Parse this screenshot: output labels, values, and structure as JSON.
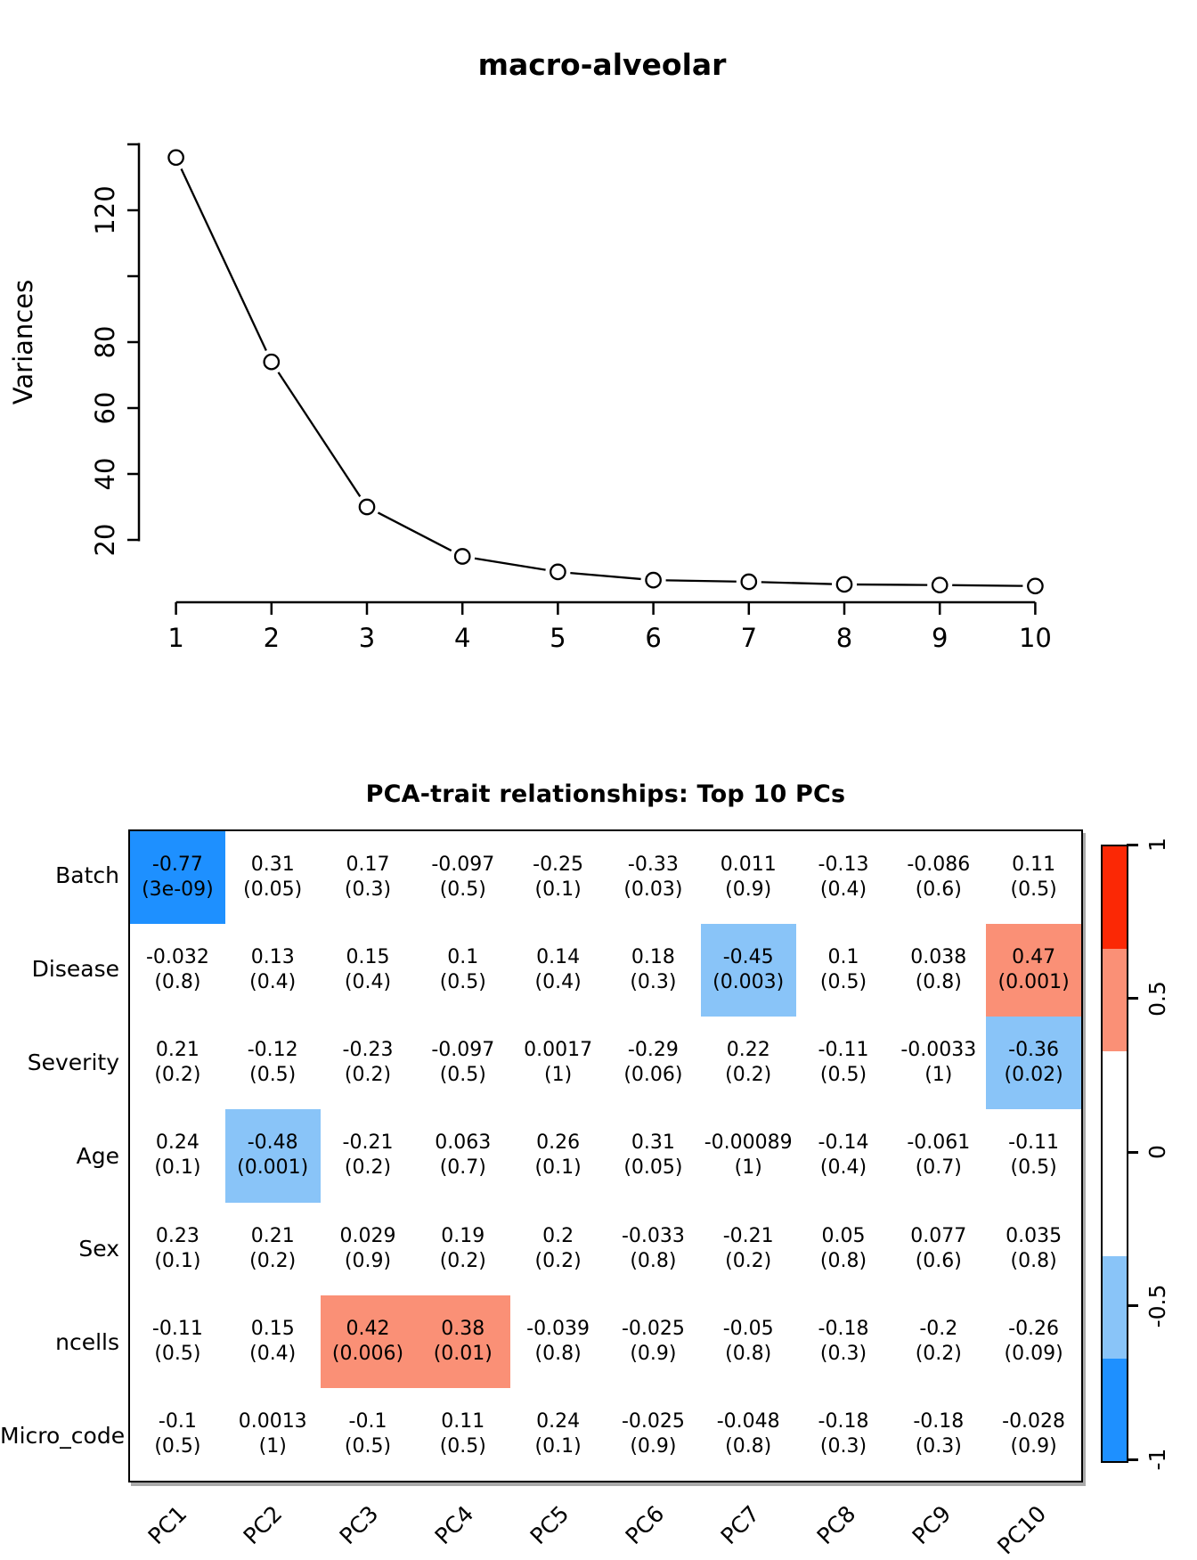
{
  "colors": {
    "blue": "#1E90FF",
    "lightblue": "#89C4F8",
    "salmon": "#FA9076",
    "red": "#FB2805",
    "white": "#FFFFFF",
    "axis": "#000000",
    "shadow": "#AAAAAA"
  },
  "chart_data": [
    {
      "type": "line",
      "title": "macro-alveolar",
      "xlabel": "",
      "ylabel": "Variances",
      "x": [
        1,
        2,
        3,
        4,
        5,
        6,
        7,
        8,
        9,
        10
      ],
      "y": [
        136,
        74,
        30,
        15,
        10.3,
        7.8,
        7.3,
        6.5,
        6.3,
        6
      ],
      "marker": "open-circle",
      "ylim": [
        1,
        142
      ],
      "grid": "off",
      "y_ticks": [
        {
          "v": 20,
          "label": "20"
        },
        {
          "v": 40,
          "label": "40"
        },
        {
          "v": 60,
          "label": "60"
        },
        {
          "v": 80,
          "label": "80"
        },
        {
          "v": 100,
          "label": ""
        },
        {
          "v": 120,
          "label": "120"
        },
        {
          "v": 140,
          "label": ""
        }
      ],
      "x_tick_labels": [
        "1",
        "2",
        "3",
        "4",
        "5",
        "6",
        "7",
        "8",
        "9",
        "10"
      ]
    },
    {
      "type": "heatmap",
      "title": "PCA-trait relationships: Top 10 PCs",
      "columns": [
        "PC1",
        "PC2",
        "PC3",
        "PC4",
        "PC5",
        "PC6",
        "PC7",
        "PC8",
        "PC9",
        "PC10"
      ],
      "cell_format": "correlation (p-value)",
      "rows": [
        {
          "label": "Batch",
          "cells": [
            {
              "r": "-0.77",
              "p": "(3e-09)",
              "c": "blue"
            },
            {
              "r": "0.31",
              "p": "(0.05)",
              "c": "white"
            },
            {
              "r": "0.17",
              "p": "(0.3)",
              "c": "white"
            },
            {
              "r": "-0.097",
              "p": "(0.5)",
              "c": "white"
            },
            {
              "r": "-0.25",
              "p": "(0.1)",
              "c": "white"
            },
            {
              "r": "-0.33",
              "p": "(0.03)",
              "c": "white"
            },
            {
              "r": "0.011",
              "p": "(0.9)",
              "c": "white"
            },
            {
              "r": "-0.13",
              "p": "(0.4)",
              "c": "white"
            },
            {
              "r": "-0.086",
              "p": "(0.6)",
              "c": "white"
            },
            {
              "r": "0.11",
              "p": "(0.5)",
              "c": "white"
            }
          ]
        },
        {
          "label": "Disease",
          "cells": [
            {
              "r": "-0.032",
              "p": "(0.8)",
              "c": "white"
            },
            {
              "r": "0.13",
              "p": "(0.4)",
              "c": "white"
            },
            {
              "r": "0.15",
              "p": "(0.4)",
              "c": "white"
            },
            {
              "r": "0.1",
              "p": "(0.5)",
              "c": "white"
            },
            {
              "r": "0.14",
              "p": "(0.4)",
              "c": "white"
            },
            {
              "r": "0.18",
              "p": "(0.3)",
              "c": "white"
            },
            {
              "r": "-0.45",
              "p": "(0.003)",
              "c": "lightblue"
            },
            {
              "r": "0.1",
              "p": "(0.5)",
              "c": "white"
            },
            {
              "r": "0.038",
              "p": "(0.8)",
              "c": "white"
            },
            {
              "r": "0.47",
              "p": "(0.001)",
              "c": "salmon"
            }
          ]
        },
        {
          "label": "Severity",
          "cells": [
            {
              "r": "0.21",
              "p": "(0.2)",
              "c": "white"
            },
            {
              "r": "-0.12",
              "p": "(0.5)",
              "c": "white"
            },
            {
              "r": "-0.23",
              "p": "(0.2)",
              "c": "white"
            },
            {
              "r": "-0.097",
              "p": "(0.5)",
              "c": "white"
            },
            {
              "r": "0.0017",
              "p": "(1)",
              "c": "white"
            },
            {
              "r": "-0.29",
              "p": "(0.06)",
              "c": "white"
            },
            {
              "r": "0.22",
              "p": "(0.2)",
              "c": "white"
            },
            {
              "r": "-0.11",
              "p": "(0.5)",
              "c": "white"
            },
            {
              "r": "-0.0033",
              "p": "(1)",
              "c": "white"
            },
            {
              "r": "-0.36",
              "p": "(0.02)",
              "c": "lightblue"
            }
          ]
        },
        {
          "label": "Age",
          "cells": [
            {
              "r": "0.24",
              "p": "(0.1)",
              "c": "white"
            },
            {
              "r": "-0.48",
              "p": "(0.001)",
              "c": "lightblue"
            },
            {
              "r": "-0.21",
              "p": "(0.2)",
              "c": "white"
            },
            {
              "r": "0.063",
              "p": "(0.7)",
              "c": "white"
            },
            {
              "r": "0.26",
              "p": "(0.1)",
              "c": "white"
            },
            {
              "r": "0.31",
              "p": "(0.05)",
              "c": "white"
            },
            {
              "r": "-0.00089",
              "p": "(1)",
              "c": "white"
            },
            {
              "r": "-0.14",
              "p": "(0.4)",
              "c": "white"
            },
            {
              "r": "-0.061",
              "p": "(0.7)",
              "c": "white"
            },
            {
              "r": "-0.11",
              "p": "(0.5)",
              "c": "white"
            }
          ]
        },
        {
          "label": "Sex",
          "cells": [
            {
              "r": "0.23",
              "p": "(0.1)",
              "c": "white"
            },
            {
              "r": "0.21",
              "p": "(0.2)",
              "c": "white"
            },
            {
              "r": "0.029",
              "p": "(0.9)",
              "c": "white"
            },
            {
              "r": "0.19",
              "p": "(0.2)",
              "c": "white"
            },
            {
              "r": "0.2",
              "p": "(0.2)",
              "c": "white"
            },
            {
              "r": "-0.033",
              "p": "(0.8)",
              "c": "white"
            },
            {
              "r": "-0.21",
              "p": "(0.2)",
              "c": "white"
            },
            {
              "r": "0.05",
              "p": "(0.8)",
              "c": "white"
            },
            {
              "r": "0.077",
              "p": "(0.6)",
              "c": "white"
            },
            {
              "r": "0.035",
              "p": "(0.8)",
              "c": "white"
            }
          ]
        },
        {
          "label": "ncells",
          "cells": [
            {
              "r": "-0.11",
              "p": "(0.5)",
              "c": "white"
            },
            {
              "r": "0.15",
              "p": "(0.4)",
              "c": "white"
            },
            {
              "r": "0.42",
              "p": "(0.006)",
              "c": "salmon"
            },
            {
              "r": "0.38",
              "p": "(0.01)",
              "c": "salmon"
            },
            {
              "r": "-0.039",
              "p": "(0.8)",
              "c": "white"
            },
            {
              "r": "-0.025",
              "p": "(0.9)",
              "c": "white"
            },
            {
              "r": "-0.05",
              "p": "(0.8)",
              "c": "white"
            },
            {
              "r": "-0.18",
              "p": "(0.3)",
              "c": "white"
            },
            {
              "r": "-0.2",
              "p": "(0.2)",
              "c": "white"
            },
            {
              "r": "-0.26",
              "p": "(0.09)",
              "c": "white"
            }
          ]
        },
        {
          "label": "Micro_code",
          "cells": [
            {
              "r": "-0.1",
              "p": "(0.5)",
              "c": "white"
            },
            {
              "r": "0.0013",
              "p": "(1)",
              "c": "white"
            },
            {
              "r": "-0.1",
              "p": "(0.5)",
              "c": "white"
            },
            {
              "r": "0.11",
              "p": "(0.5)",
              "c": "white"
            },
            {
              "r": "0.24",
              "p": "(0.1)",
              "c": "white"
            },
            {
              "r": "-0.025",
              "p": "(0.9)",
              "c": "white"
            },
            {
              "r": "-0.048",
              "p": "(0.8)",
              "c": "white"
            },
            {
              "r": "-0.18",
              "p": "(0.3)",
              "c": "white"
            },
            {
              "r": "-0.18",
              "p": "(0.3)",
              "c": "white"
            },
            {
              "r": "-0.028",
              "p": "(0.9)",
              "c": "white"
            }
          ]
        }
      ],
      "colorbar": {
        "position": "right",
        "tick_labels": [
          "1",
          "0.5",
          "0",
          "-0.5",
          "-1"
        ],
        "tick_values": [
          1,
          0.5,
          0,
          -0.5,
          -1
        ],
        "segments": [
          {
            "c": "red",
            "from": 0.667,
            "to": 1
          },
          {
            "c": "salmon",
            "from": 0.333,
            "to": 0.667
          },
          {
            "c": "white",
            "from": -0.333,
            "to": 0.333
          },
          {
            "c": "lightblue",
            "from": -0.667,
            "to": -0.333
          },
          {
            "c": "blue",
            "from": -1,
            "to": -0.667
          }
        ]
      }
    }
  ]
}
